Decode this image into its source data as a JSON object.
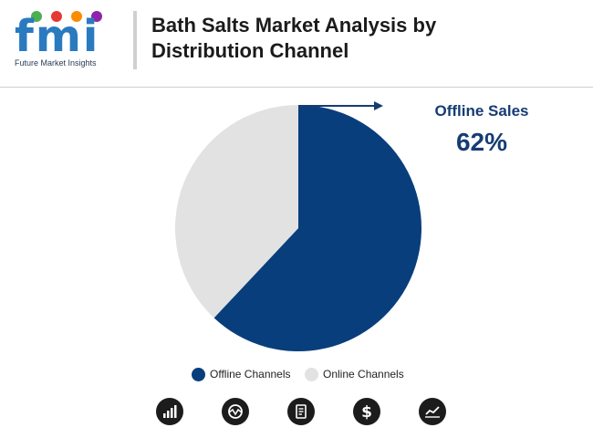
{
  "header": {
    "logo_text": "fmi",
    "logo_tagline": "Future Market Insights",
    "title": "Bath Salts Market Analysis by Distribution Channel"
  },
  "callout": {
    "label": "Offline Sales",
    "value": "62%"
  },
  "chart_data": {
    "type": "pie",
    "title": "",
    "slices": [
      {
        "name": "Offline Channels",
        "value": 62,
        "color": "#083e7c"
      },
      {
        "name": "Online Channels",
        "value": 38,
        "color": "#e2e2e2"
      }
    ],
    "legend_position": "bottom"
  },
  "legend": [
    {
      "label": "Offline Channels",
      "color": "#083e7c"
    },
    {
      "label": "Online Channels",
      "color": "#e2e2e2"
    }
  ],
  "icons": [
    "bar-chart-icon",
    "gauge-icon",
    "report-icon",
    "dollar-icon",
    "trend-chart-icon"
  ],
  "colors": {
    "accent": "#163c73",
    "logo_blue": "#2a7ac0"
  }
}
